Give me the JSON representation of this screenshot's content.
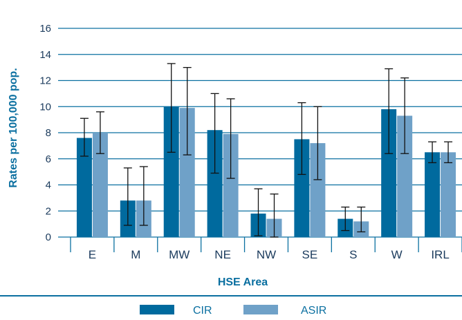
{
  "chart_data": {
    "type": "bar",
    "title": "",
    "xlabel": "HSE Area",
    "ylabel": "Rates per 100,000 pop.",
    "ylim": [
      0,
      16
    ],
    "yticks": [
      0,
      2,
      4,
      6,
      8,
      10,
      12,
      14,
      16
    ],
    "categories": [
      "E",
      "M",
      "MW",
      "NE",
      "NW",
      "SE",
      "S",
      "W",
      "IRL"
    ],
    "grid": true,
    "legend_position": "bottom",
    "series": [
      {
        "name": "CIR",
        "color": "#006a9e",
        "values": [
          7.6,
          2.8,
          10.0,
          8.2,
          1.8,
          7.5,
          1.4,
          9.8,
          6.5
        ],
        "error_low": [
          6.2,
          0.9,
          6.5,
          4.9,
          0.1,
          4.8,
          0.5,
          6.4,
          5.7
        ],
        "error_high": [
          9.1,
          5.3,
          13.3,
          11.0,
          3.7,
          10.3,
          2.3,
          12.9,
          7.3
        ]
      },
      {
        "name": "ASIR",
        "color": "#6fa1c8",
        "values": [
          8.0,
          2.8,
          9.9,
          7.9,
          1.4,
          7.2,
          1.2,
          9.3,
          6.5
        ],
        "error_low": [
          6.4,
          0.9,
          6.3,
          4.5,
          0.0,
          4.4,
          0.4,
          6.4,
          5.7
        ],
        "error_high": [
          9.6,
          5.4,
          13.0,
          10.6,
          3.3,
          10.0,
          2.3,
          12.2,
          7.3
        ]
      }
    ]
  }
}
